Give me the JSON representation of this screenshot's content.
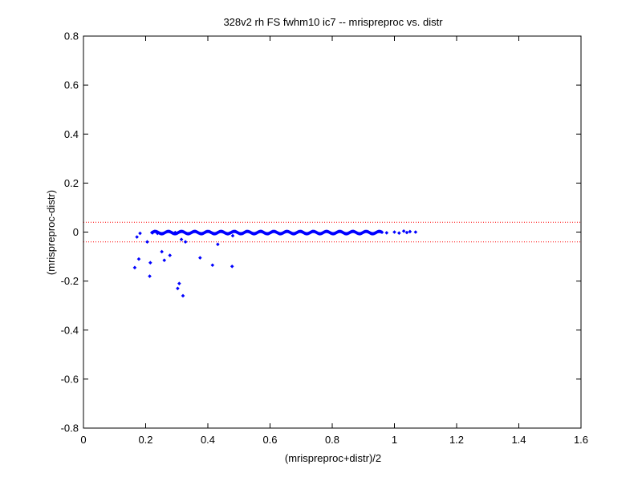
{
  "chart_data": {
    "type": "scatter",
    "title": "328v2 rh FS fwhm10 ic7 -- mrispreproc vs. distr",
    "xlabel": "(mrispreproc+distr)/2",
    "ylabel": "(mrispreproc-distr)",
    "xlim": [
      0,
      1.6
    ],
    "ylim": [
      -0.8,
      0.8
    ],
    "xticks": [
      0,
      0.2,
      0.4,
      0.6,
      0.8,
      1,
      1.2,
      1.4,
      1.6
    ],
    "yticks": [
      -0.8,
      -0.6,
      -0.4,
      -0.2,
      0,
      0.2,
      0.4,
      0.6,
      0.8
    ],
    "xtick_labels": [
      "0",
      "0.2",
      "0.4",
      "0.6",
      "0.8",
      "1",
      "1.2",
      "1.4",
      "1.6"
    ],
    "ytick_labels": [
      "-0.8",
      "-0.6",
      "-0.4",
      "-0.2",
      "0",
      "0.2",
      "0.4",
      "0.6",
      "0.8"
    ],
    "grid": false,
    "reference_lines": [
      {
        "y": 0.04,
        "color": "#ff0000",
        "style": "dotted"
      },
      {
        "y": -0.04,
        "color": "#ff0000",
        "style": "dotted"
      }
    ],
    "marker_color": "#0000ff",
    "series": [
      {
        "points": [
          [
            0.165,
            -0.145
          ],
          [
            0.172,
            -0.02
          ],
          [
            0.178,
            -0.11
          ],
          [
            0.182,
            -0.005
          ],
          [
            0.205,
            -0.04
          ],
          [
            0.213,
            -0.18
          ],
          [
            0.215,
            -0.125
          ],
          [
            0.222,
            -0.003
          ],
          [
            0.238,
            -0.005
          ],
          [
            0.252,
            -0.08
          ],
          [
            0.26,
            -0.115
          ],
          [
            0.278,
            -0.095
          ],
          [
            0.295,
            -0.002
          ],
          [
            0.303,
            -0.23
          ],
          [
            0.308,
            -0.21
          ],
          [
            0.315,
            -0.03
          ],
          [
            0.32,
            -0.26
          ],
          [
            0.328,
            -0.04
          ],
          [
            0.375,
            -0.105
          ],
          [
            0.415,
            -0.135
          ],
          [
            0.432,
            -0.05
          ],
          [
            0.478,
            -0.14
          ],
          [
            0.48,
            -0.015
          ],
          [
            0.975,
            -0.003
          ],
          [
            1.0,
            0.0
          ],
          [
            1.015,
            -0.004
          ],
          [
            1.03,
            0.004
          ],
          [
            1.04,
            -0.002
          ],
          [
            1.05,
            0.002
          ],
          [
            1.068,
            0.0
          ]
        ],
        "band": {
          "x_start": 0.22,
          "x_end": 0.96,
          "y_center": -0.002,
          "y_spread": 0.006,
          "count": 260
        }
      }
    ]
  }
}
